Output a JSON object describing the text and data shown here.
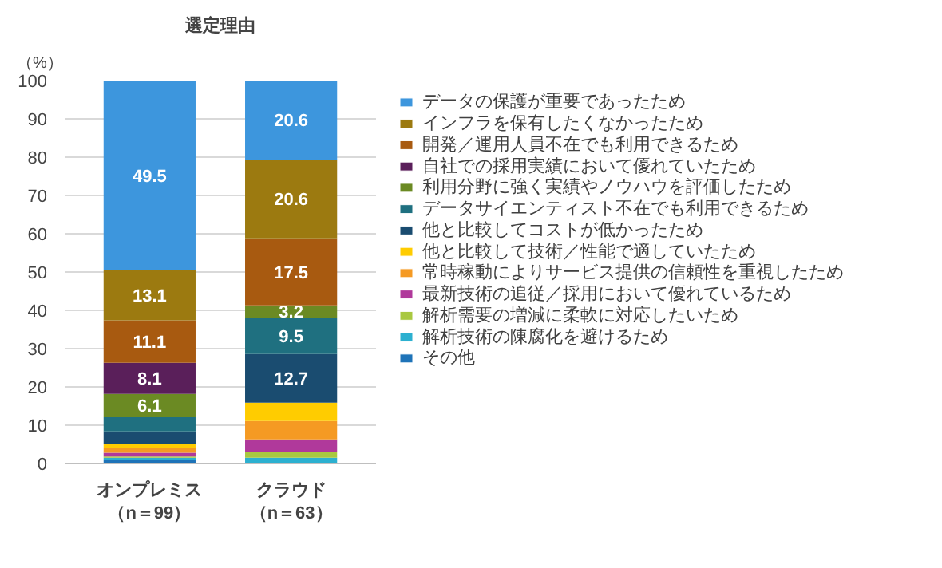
{
  "chart_data": {
    "type": "bar",
    "stacked": true,
    "title": "選定理由",
    "ylabel": "（%）",
    "categories": [
      "オンプレミス（n＝99）",
      "クラウド（n＝63）"
    ],
    "ylim": [
      0,
      100
    ],
    "yticks": [
      0,
      10,
      20,
      30,
      40,
      50,
      60,
      70,
      80,
      90,
      100
    ],
    "grid": "y",
    "legend": "right",
    "series": [
      {
        "name": "その他",
        "color": "#1e73b8",
        "values": [
          1.0,
          0
        ]
      },
      {
        "name": "解析技術の陳腐化を避けるため",
        "color": "#2cb0d0",
        "values": [
          0.5,
          1.5
        ]
      },
      {
        "name": "解析需要の増減に柔軟に対応したいため",
        "color": "#a9c840",
        "values": [
          0.3,
          1.6
        ]
      },
      {
        "name": "最新技術の追従／採用において優れているため",
        "color": "#b0399b",
        "values": [
          1.0,
          3.2
        ]
      },
      {
        "name": "常時稼動によりサービス提供の信頼性を重視したため",
        "color": "#f59a23",
        "values": [
          1.2,
          4.8
        ]
      },
      {
        "name": "他と比較して技術／性能で適していたため",
        "color": "#ffcc00",
        "values": [
          1.2,
          4.8
        ]
      },
      {
        "name": "他と比較してコストが低かったため",
        "color": "#1a4c70",
        "values": [
          3.2,
          12.7
        ],
        "value_labels": [
          null,
          "12.7"
        ]
      },
      {
        "name": "データサイエンティスト不在でも利用できるため",
        "color": "#1f7080",
        "values": [
          3.7,
          9.5
        ],
        "value_labels": [
          null,
          "9.5"
        ]
      },
      {
        "name": "利用分野に強く実績やノウハウを評価したため",
        "color": "#6b8a23",
        "values": [
          6.1,
          3.2
        ],
        "value_labels": [
          "6.1",
          "3.2"
        ]
      },
      {
        "name": "自社での採用実績において優れていたため",
        "color": "#5a1f5a",
        "values": [
          8.1,
          0
        ],
        "value_labels": [
          "8.1",
          null
        ]
      },
      {
        "name": "開発／運用人員不在でも利用できるため",
        "color": "#a85a10",
        "values": [
          11.1,
          17.5
        ],
        "value_labels": [
          "11.1",
          "17.5"
        ]
      },
      {
        "name": "インフラを保有したくなかったため",
        "color": "#9c7a10",
        "values": [
          13.1,
          20.6
        ],
        "value_labels": [
          "13.1",
          "20.6"
        ]
      },
      {
        "name": "データの保護が重要であったため",
        "color": "#3d96dd",
        "values": [
          49.5,
          20.6
        ],
        "value_labels": [
          "49.5",
          "20.6"
        ]
      }
    ]
  }
}
